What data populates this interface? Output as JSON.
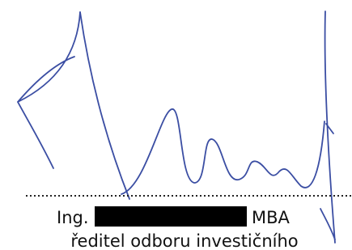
{
  "signature": {
    "prefix": "Ing.",
    "suffix": "MBA",
    "position": "ředitel odboru investičního"
  }
}
